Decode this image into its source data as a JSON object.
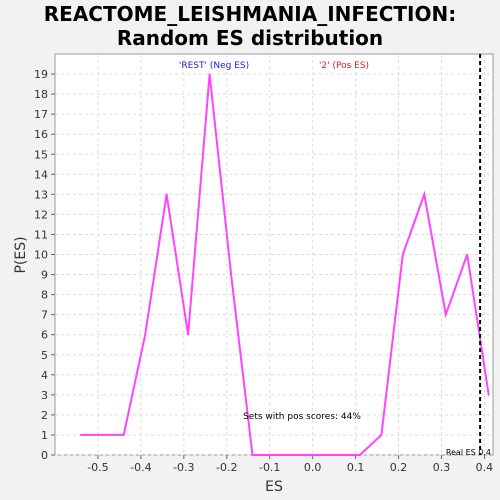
{
  "chart_data": {
    "type": "line",
    "title_line1": "REACTOME_LEISHMANIA_INFECTION:",
    "title_line2": "Random ES distribution",
    "xlabel": "ES",
    "ylabel": "P(ES)",
    "xlim": [
      -0.6,
      0.42
    ],
    "ylim": [
      0,
      20
    ],
    "x_ticks": [
      "-0.5",
      "-0.4",
      "-0.3",
      "-0.2",
      "-0.1",
      "0.0",
      "0.1",
      "0.2",
      "0.3",
      "0.4"
    ],
    "x_tick_values": [
      -0.5,
      -0.4,
      -0.3,
      -0.2,
      -0.1,
      0.0,
      0.1,
      0.2,
      0.3,
      0.4
    ],
    "y_ticks": [
      "0",
      "1",
      "2",
      "3",
      "4",
      "5",
      "6",
      "7",
      "8",
      "9",
      "10",
      "11",
      "12",
      "13",
      "14",
      "15",
      "16",
      "17",
      "18",
      "19"
    ],
    "grid": true,
    "series": [
      {
        "color": "#ff44ff",
        "x": [
          -0.54,
          -0.44,
          -0.39,
          -0.34,
          -0.29,
          -0.24,
          -0.19,
          -0.14,
          -0.09,
          -0.04,
          0.01,
          0.06,
          0.11,
          0.16,
          0.21,
          0.26,
          0.31,
          0.36,
          0.41
        ],
        "y": [
          1,
          1,
          6,
          13,
          6,
          19,
          9,
          0,
          0,
          0,
          0,
          0,
          0,
          1,
          10,
          13,
          7,
          10,
          3
        ]
      }
    ],
    "annotations": {
      "neg_label": "'REST' (Neg ES)",
      "neg_color": "#2222cc",
      "pos_label": "'2' (Pos ES)",
      "pos_color": "#dd2222",
      "pos_scores": "Sets with pos scores: 44%",
      "real_es_label": "Real ES 0.4",
      "real_es_value": 0.39
    }
  }
}
